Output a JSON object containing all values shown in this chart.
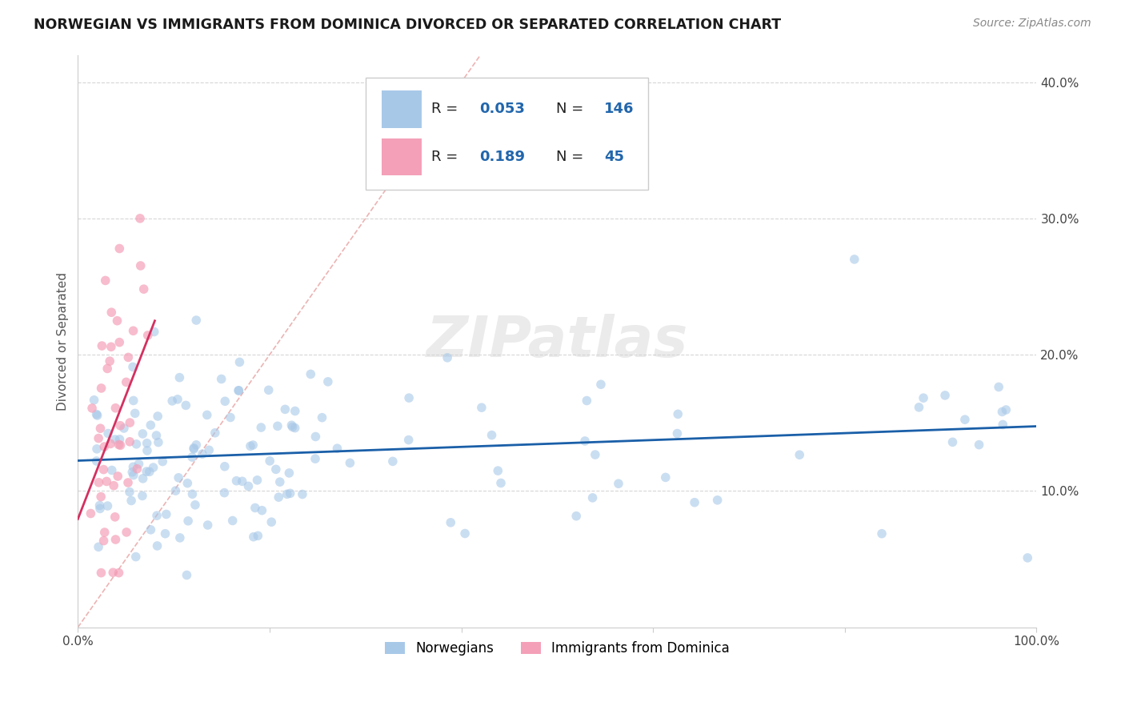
{
  "title": "NORWEGIAN VS IMMIGRANTS FROM DOMINICA DIVORCED OR SEPARATED CORRELATION CHART",
  "source": "Source: ZipAtlas.com",
  "ylabel": "Divorced or Separated",
  "xlim": [
    0.0,
    1.0
  ],
  "ylim": [
    0.0,
    0.42
  ],
  "legend_label1": "Norwegians",
  "legend_label2": "Immigrants from Dominica",
  "r1": 0.053,
  "n1": 146,
  "r2": 0.189,
  "n2": 45,
  "color_norwegian": "#a8c8e8",
  "color_dominica": "#f4a0b8",
  "color_trend_norwegian": "#1a5fa8",
  "color_trend_dominica": "#d43060",
  "color_diagonal": "#e8b0b0",
  "color_grid": "#cccccc",
  "background_color": "#ffffff"
}
